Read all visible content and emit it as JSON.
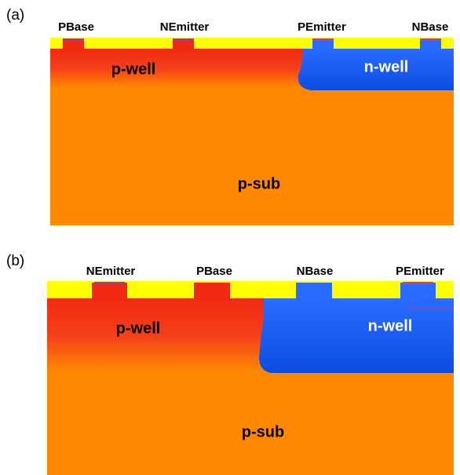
{
  "panels": [
    {
      "label": "(a)",
      "terminals": [
        "PBase",
        "NEmitter",
        "PEmitter",
        "NBase"
      ],
      "regions": {
        "p_well": "p-well",
        "n_well": "n-well",
        "p_sub": "p-sub"
      }
    },
    {
      "label": "(b)",
      "terminals": [
        "NEmitter",
        "PBase",
        "NBase",
        "PEmitter"
      ],
      "regions": {
        "p_well": "p-well",
        "n_well": "n-well",
        "p_sub": "p-sub"
      }
    }
  ]
}
